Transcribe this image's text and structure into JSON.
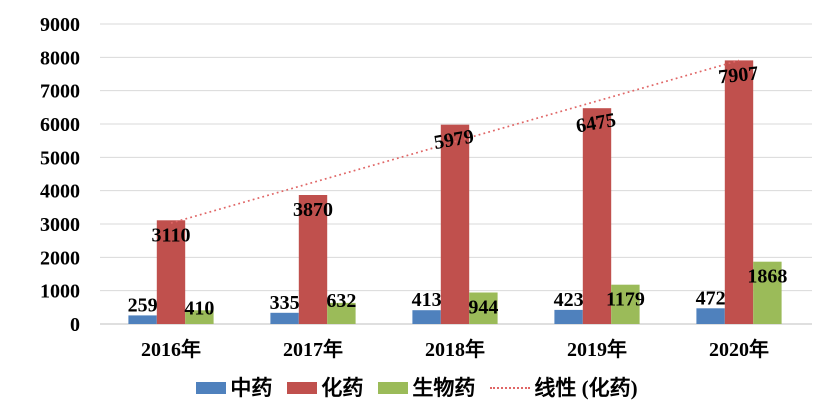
{
  "chart_data": {
    "type": "bar",
    "categories": [
      "2016年",
      "2017年",
      "2018年",
      "2019年",
      "2020年"
    ],
    "series": [
      {
        "name": "中药",
        "color": "#4F81BD",
        "values": [
          259,
          335,
          413,
          423,
          472
        ],
        "label_placement": "outside",
        "label_dy": -4
      },
      {
        "name": "化药",
        "color": "#C0504D",
        "values": [
          3110,
          3870,
          5979,
          6475,
          7907
        ],
        "label_placement": "inside",
        "label_rotations": [
          0,
          0,
          -10,
          -10,
          -6
        ]
      },
      {
        "name": "生物药",
        "color": "#9BBB59",
        "values": [
          410,
          632,
          944,
          1179,
          1868
        ],
        "label_placement": "auto",
        "inside_threshold": 900,
        "label_dy": 4
      }
    ],
    "trendline": {
      "name": "线性 (化药)",
      "color": "#e06666",
      "start_value": 3028,
      "end_value": 7908,
      "style": "dotted"
    },
    "y_axis": {
      "min": 0,
      "max": 9000,
      "step": 1000,
      "tick_labels": [
        "0",
        "1000",
        "2000",
        "3000",
        "4000",
        "5000",
        "6000",
        "7000",
        "8000",
        "9000"
      ]
    },
    "grid": true,
    "gridline_color": "#d9d9d9",
    "axis_line_color": "#bfbfbf",
    "label_color": "#000000",
    "legend_position": "bottom",
    "title": "",
    "xlabel": "",
    "ylabel": ""
  }
}
